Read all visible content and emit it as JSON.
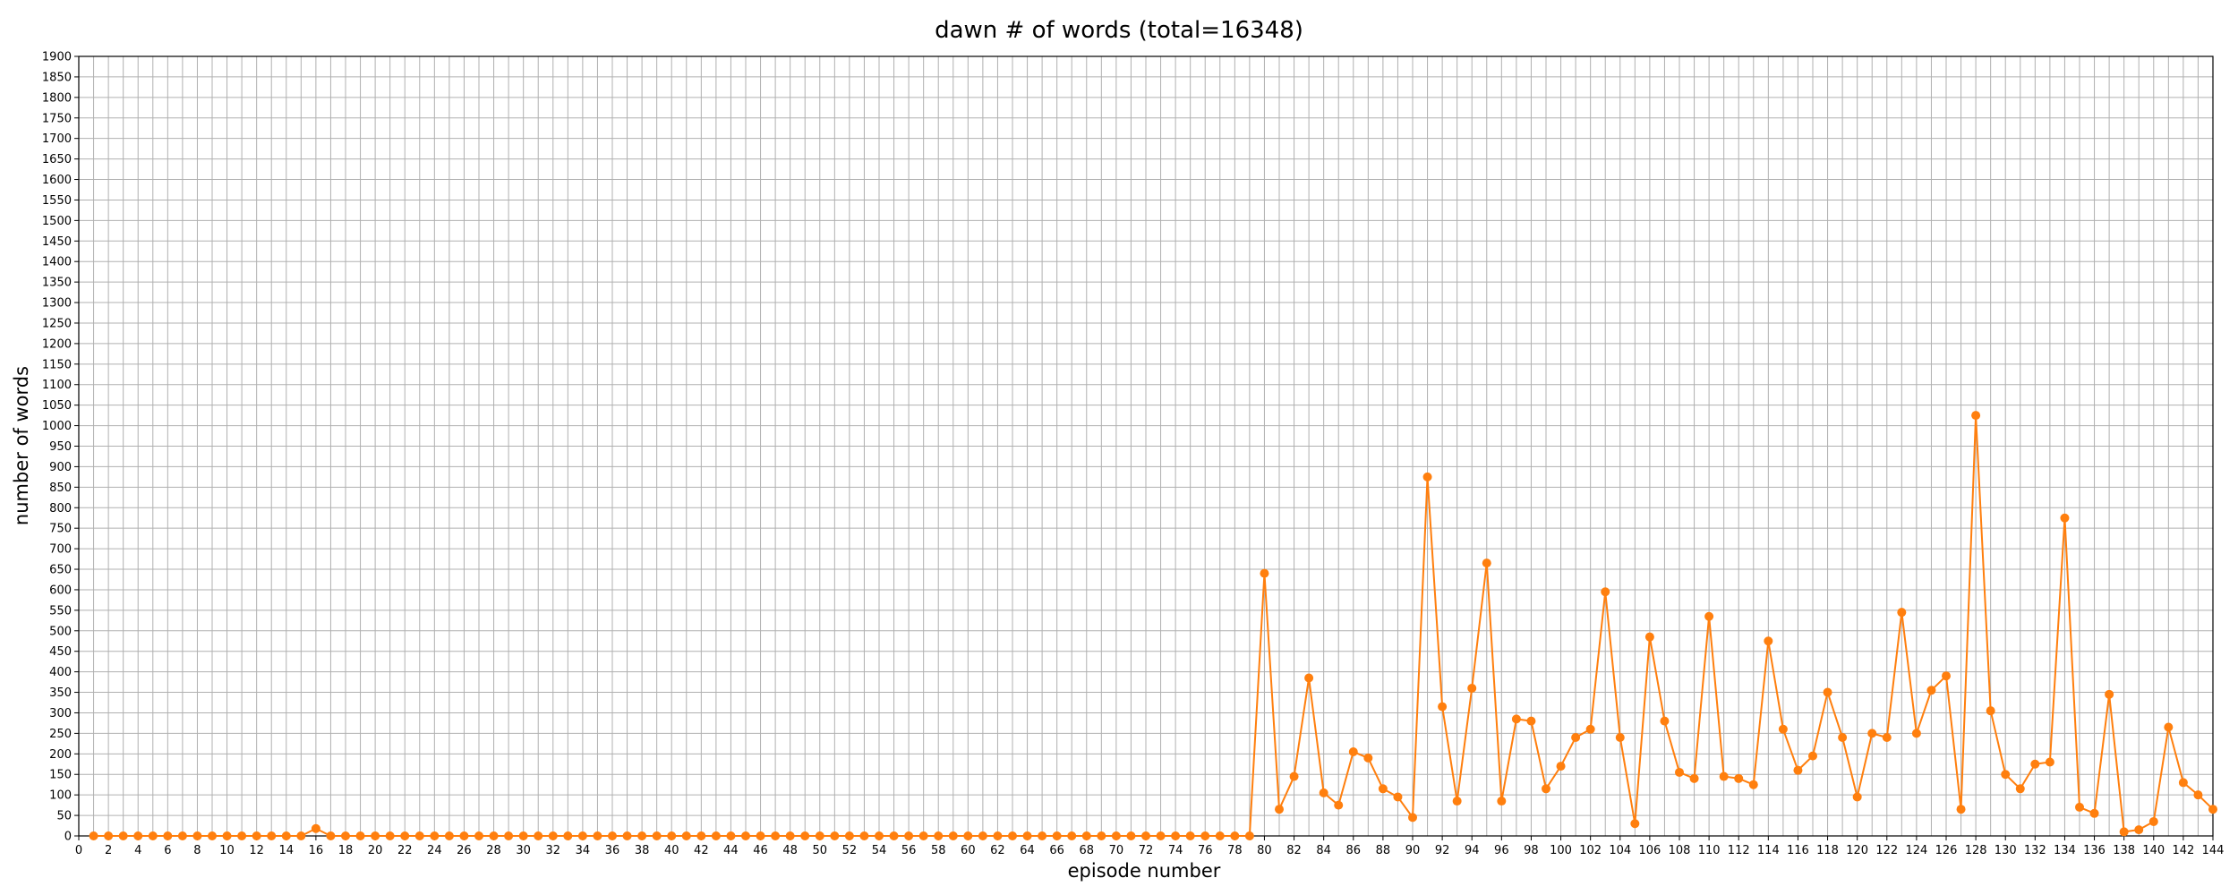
{
  "chart_data": {
    "type": "line",
    "title": "dawn # of words (total=16348)",
    "xlabel": "episode number",
    "ylabel": "number of words",
    "xlim": [
      0,
      144
    ],
    "ylim": [
      0,
      1900
    ],
    "x_tick_step": 2,
    "y_tick_step": 50,
    "grid": true,
    "legend": "none",
    "series": [
      {
        "color": "#ff7f0e",
        "marker": "circle",
        "points": [
          [
            1,
            0
          ],
          [
            2,
            0
          ],
          [
            3,
            0
          ],
          [
            4,
            0
          ],
          [
            5,
            0
          ],
          [
            6,
            0
          ],
          [
            7,
            0
          ],
          [
            8,
            0
          ],
          [
            9,
            0
          ],
          [
            10,
            0
          ],
          [
            11,
            0
          ],
          [
            12,
            0
          ],
          [
            13,
            0
          ],
          [
            14,
            0
          ],
          [
            15,
            0
          ],
          [
            16,
            18
          ],
          [
            17,
            0
          ],
          [
            18,
            0
          ],
          [
            19,
            0
          ],
          [
            20,
            0
          ],
          [
            21,
            0
          ],
          [
            22,
            0
          ],
          [
            23,
            0
          ],
          [
            24,
            0
          ],
          [
            25,
            0
          ],
          [
            26,
            0
          ],
          [
            27,
            0
          ],
          [
            28,
            0
          ],
          [
            29,
            0
          ],
          [
            30,
            0
          ],
          [
            31,
            0
          ],
          [
            32,
            0
          ],
          [
            33,
            0
          ],
          [
            34,
            0
          ],
          [
            35,
            0
          ],
          [
            36,
            0
          ],
          [
            37,
            0
          ],
          [
            38,
            0
          ],
          [
            39,
            0
          ],
          [
            40,
            0
          ],
          [
            41,
            0
          ],
          [
            42,
            0
          ],
          [
            43,
            0
          ],
          [
            44,
            0
          ],
          [
            45,
            0
          ],
          [
            46,
            0
          ],
          [
            47,
            0
          ],
          [
            48,
            0
          ],
          [
            49,
            0
          ],
          [
            50,
            0
          ],
          [
            51,
            0
          ],
          [
            52,
            0
          ],
          [
            53,
            0
          ],
          [
            54,
            0
          ],
          [
            55,
            0
          ],
          [
            56,
            0
          ],
          [
            57,
            0
          ],
          [
            58,
            0
          ],
          [
            59,
            0
          ],
          [
            60,
            0
          ],
          [
            61,
            0
          ],
          [
            62,
            0
          ],
          [
            63,
            0
          ],
          [
            64,
            0
          ],
          [
            65,
            0
          ],
          [
            66,
            0
          ],
          [
            67,
            0
          ],
          [
            68,
            0
          ],
          [
            69,
            0
          ],
          [
            70,
            0
          ],
          [
            71,
            0
          ],
          [
            72,
            0
          ],
          [
            73,
            0
          ],
          [
            74,
            0
          ],
          [
            75,
            0
          ],
          [
            76,
            0
          ],
          [
            77,
            0
          ],
          [
            78,
            0
          ],
          [
            79,
            0
          ],
          [
            80,
            640
          ],
          [
            81,
            65
          ],
          [
            82,
            145
          ],
          [
            83,
            385
          ],
          [
            84,
            105
          ],
          [
            85,
            75
          ],
          [
            86,
            205
          ],
          [
            87,
            190
          ],
          [
            88,
            115
          ],
          [
            89,
            95
          ],
          [
            90,
            45
          ],
          [
            91,
            875
          ],
          [
            92,
            315
          ],
          [
            93,
            85
          ],
          [
            94,
            360
          ],
          [
            95,
            665
          ],
          [
            96,
            85
          ],
          [
            97,
            285
          ],
          [
            98,
            280
          ],
          [
            99,
            115
          ],
          [
            100,
            170
          ],
          [
            101,
            240
          ],
          [
            102,
            260
          ],
          [
            103,
            595
          ],
          [
            104,
            240
          ],
          [
            105,
            30
          ],
          [
            106,
            485
          ],
          [
            107,
            280
          ],
          [
            108,
            155
          ],
          [
            109,
            140
          ],
          [
            110,
            535
          ],
          [
            111,
            145
          ],
          [
            112,
            140
          ],
          [
            113,
            125
          ],
          [
            114,
            475
          ],
          [
            115,
            260
          ],
          [
            116,
            160
          ],
          [
            117,
            195
          ],
          [
            118,
            350
          ],
          [
            119,
            240
          ],
          [
            120,
            95
          ],
          [
            121,
            250
          ],
          [
            122,
            240
          ],
          [
            123,
            545
          ],
          [
            124,
            250
          ],
          [
            125,
            355
          ],
          [
            126,
            390
          ],
          [
            127,
            65
          ],
          [
            128,
            1025
          ],
          [
            129,
            305
          ],
          [
            130,
            150
          ],
          [
            131,
            115
          ],
          [
            132,
            175
          ],
          [
            133,
            180
          ],
          [
            134,
            775
          ],
          [
            135,
            70
          ],
          [
            136,
            55
          ],
          [
            137,
            345
          ],
          [
            138,
            10
          ],
          [
            139,
            15
          ],
          [
            140,
            35
          ],
          [
            141,
            265
          ],
          [
            142,
            130
          ],
          [
            143,
            100
          ],
          [
            144,
            65
          ]
        ]
      }
    ]
  }
}
